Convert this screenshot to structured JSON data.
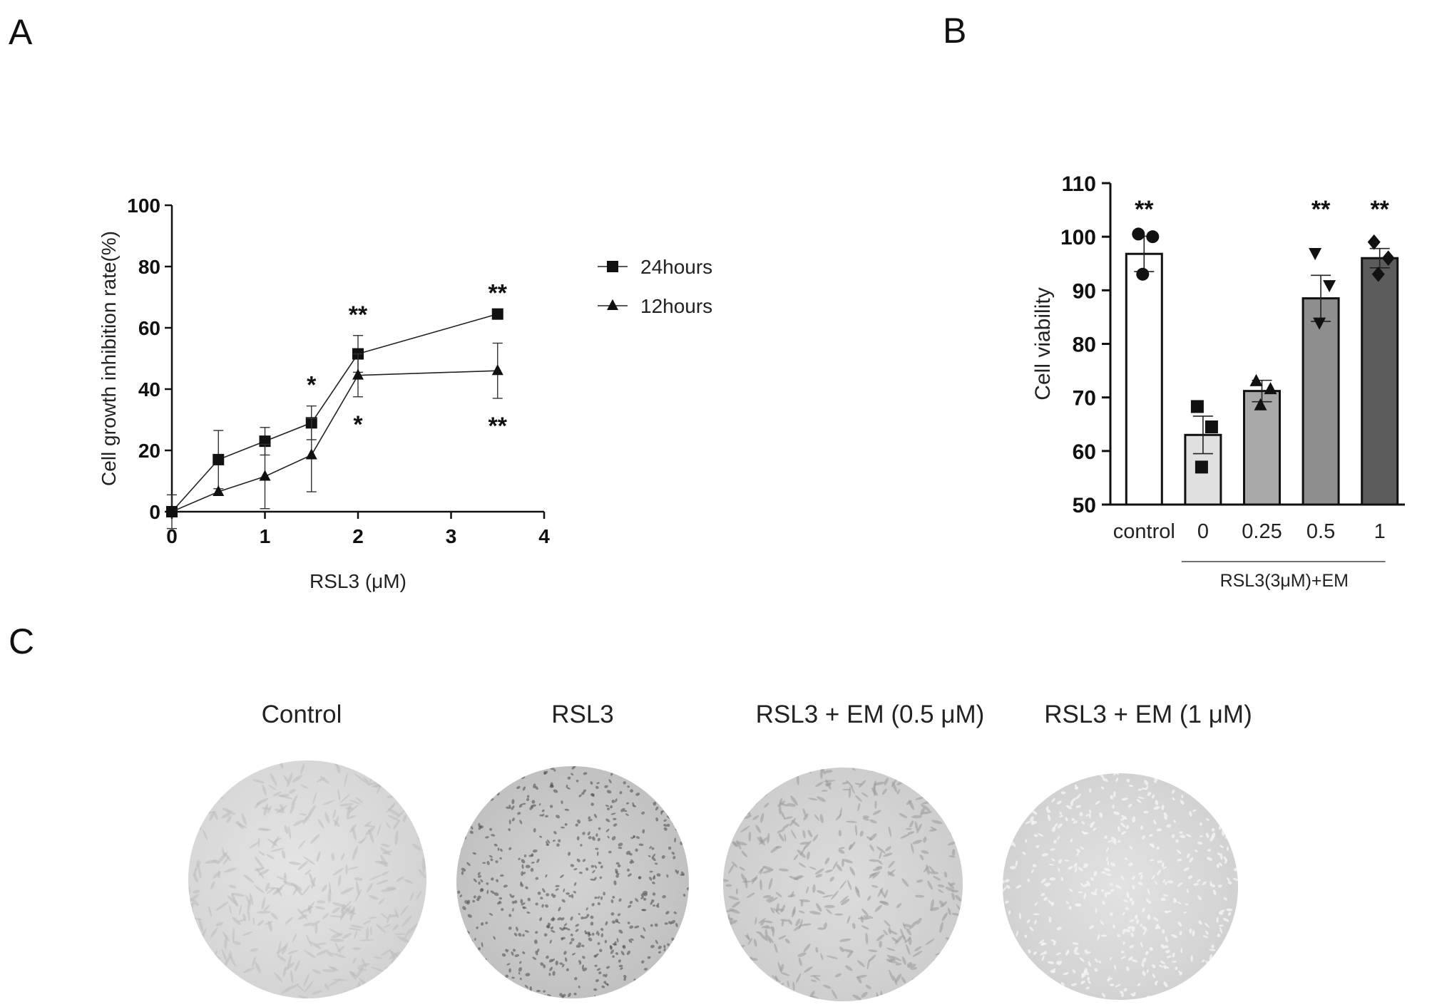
{
  "panels": {
    "a": "A",
    "b": "B",
    "c": "C"
  },
  "chart_data": [
    {
      "type": "line",
      "panel": "A",
      "xlabel": "RSL3 (μM)",
      "ylabel": "Cell growth inhibition rate(%)",
      "xlim": [
        0,
        4
      ],
      "ylim": [
        0,
        100
      ],
      "xticks": [
        "0",
        "1",
        "2",
        "3",
        "4"
      ],
      "yticks": [
        "0",
        "20",
        "40",
        "60",
        "80",
        "100"
      ],
      "legend_position": "right",
      "series": [
        {
          "name": "24hours",
          "marker": "square",
          "x": [
            0,
            0.5,
            1,
            1.5,
            2,
            3.5
          ],
          "y": [
            0,
            17,
            23,
            29,
            51.5,
            64.5
          ],
          "err": [
            5.5,
            9.5,
            4.5,
            5.5,
            6,
            0
          ],
          "significance": [
            "",
            "",
            "",
            "*",
            "**",
            "**"
          ]
        },
        {
          "name": "12hours",
          "marker": "triangle",
          "x": [
            0,
            0.5,
            1,
            1.5,
            2,
            3.5
          ],
          "y": [
            0,
            6.5,
            11.5,
            18.5,
            44.5,
            46
          ],
          "err": [
            0,
            0,
            10.5,
            12,
            7,
            9
          ],
          "significance": [
            "",
            "",
            "",
            "",
            "*",
            "**"
          ]
        }
      ]
    },
    {
      "type": "bar",
      "panel": "B",
      "ylabel": "Cell viability",
      "ylim": [
        50,
        110
      ],
      "yticks": [
        "50",
        "60",
        "70",
        "80",
        "90",
        "100",
        "110"
      ],
      "categories": [
        "control",
        "0",
        "0.25",
        "0.5",
        "1"
      ],
      "group_label": "RSL3(3μM)+EM",
      "values": [
        96.8,
        63,
        71.2,
        88.5,
        96
      ],
      "err": [
        3.3,
        3.5,
        2,
        4.3,
        1.8
      ],
      "points": [
        [
          100.5,
          100,
          93
        ],
        [
          68.3,
          64.5,
          57
        ],
        [
          73,
          71.5,
          68.5
        ],
        [
          97,
          91,
          84
        ],
        [
          99,
          96,
          93
        ]
      ],
      "point_markers": [
        "circle",
        "square",
        "triangle",
        "triangle-down",
        "diamond"
      ],
      "significance": [
        "**",
        "",
        "",
        "**",
        "**"
      ],
      "colors": [
        "#ffffff",
        "#e0e0e0",
        "#a8a8a8",
        "#8e8e8e",
        "#5c5c5c"
      ]
    }
  ],
  "micrographs": {
    "labels": [
      "Control",
      "RSL3",
      "RSL3  + EM (0.5 μM)",
      "RSL3  + EM (1 μM)"
    ]
  }
}
